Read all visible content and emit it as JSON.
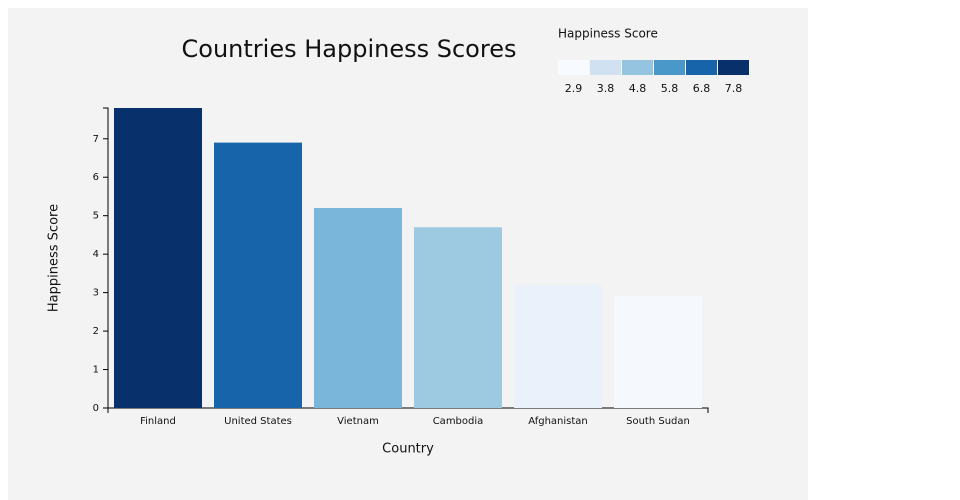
{
  "chart_data": {
    "type": "bar",
    "title": "Countries Happiness Scores",
    "x_label": "Country",
    "y_label": "Happiness Score",
    "categories": [
      "Finland",
      "United States",
      "Vietnam",
      "Cambodia",
      "Afghanistan",
      "South Sudan"
    ],
    "values": [
      7.8,
      6.9,
      5.2,
      4.7,
      3.2,
      2.9
    ],
    "colors": [
      "#08306b",
      "#1764ab",
      "#7ab6d9",
      "#9ecae1",
      "#eaf1fa",
      "#f5f9fe"
    ],
    "ylim": [
      0,
      7.8
    ],
    "yticks": [
      0,
      1,
      2,
      3,
      4,
      5,
      6,
      7
    ],
    "legend": {
      "title": "Happiness Score",
      "labels": [
        2.9,
        3.8,
        4.8,
        5.8,
        6.8,
        7.8
      ],
      "colors": [
        "#f7fbff",
        "#d0e1f2",
        "#94c4df",
        "#4a98c9",
        "#1764ab",
        "#08306b"
      ]
    }
  }
}
